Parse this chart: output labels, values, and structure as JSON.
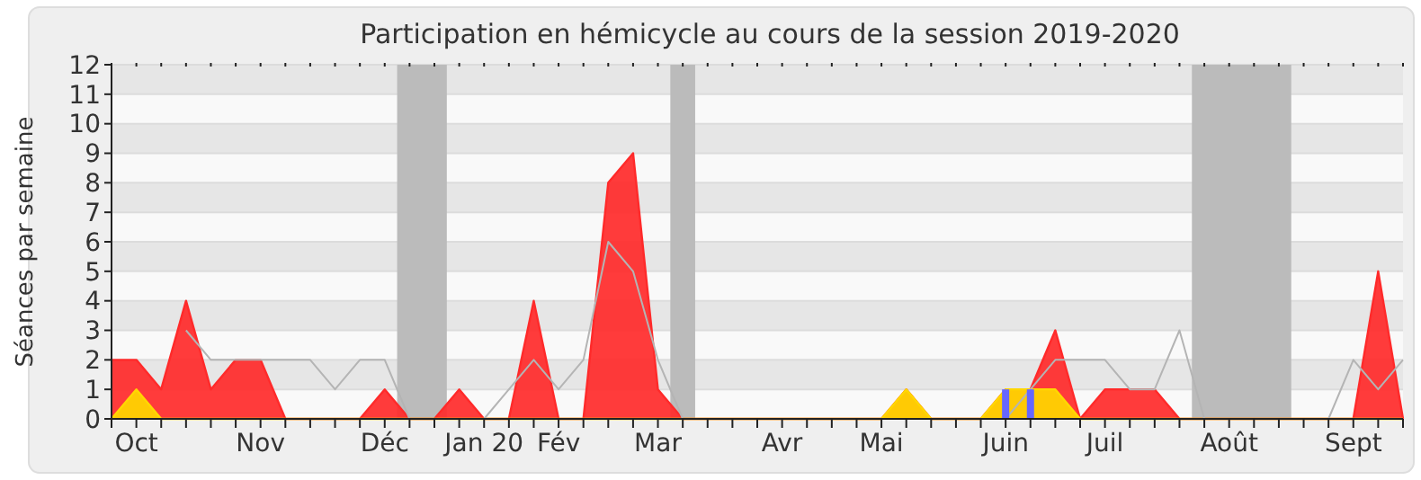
{
  "chart_data": {
    "type": "area",
    "title": "Participation en hémicycle au cours de la session 2019-2020",
    "ylabel": "Séances par semaine",
    "categories": [
      null,
      "Oct",
      null,
      null,
      null,
      null,
      "Nov",
      null,
      null,
      null,
      null,
      "Déc",
      null,
      null,
      null,
      "Jan 20",
      null,
      null,
      "Fév",
      null,
      null,
      null,
      "Mar",
      null,
      null,
      null,
      null,
      "Avr",
      null,
      null,
      null,
      "Mai",
      null,
      null,
      null,
      null,
      "Juin",
      null,
      null,
      null,
      "Juil",
      null,
      null,
      null,
      null,
      "Août",
      null,
      null,
      null,
      null,
      "Sept",
      null,
      null
    ],
    "ylim": [
      0,
      12
    ],
    "yticks": [
      0,
      1,
      2,
      3,
      4,
      5,
      6,
      7,
      8,
      9,
      10,
      11,
      12
    ],
    "grid": "y",
    "series": [
      {
        "color": "#ff2a2a",
        "values": [
          2,
          2,
          1,
          4,
          1,
          2,
          2,
          0,
          0,
          0,
          0,
          1,
          0,
          0,
          1,
          0,
          0,
          4,
          0,
          0,
          8,
          9,
          1,
          0,
          0,
          0,
          0,
          0,
          0,
          0,
          0,
          0,
          1,
          0,
          0,
          0,
          1,
          1,
          3,
          0,
          1,
          1,
          1,
          0,
          0,
          0,
          0,
          0,
          0,
          0,
          0,
          5,
          0
        ]
      },
      {
        "color": "#ffd700",
        "values": [
          0,
          1,
          0,
          0,
          0,
          0,
          0,
          0,
          0,
          0,
          0,
          0,
          0,
          0,
          0,
          0,
          0,
          0,
          0,
          0,
          0,
          0,
          0,
          0,
          0,
          0,
          0,
          0,
          0,
          0,
          0,
          0,
          1,
          0,
          0,
          0,
          1,
          1,
          1,
          0,
          0,
          0,
          0,
          0,
          0,
          0,
          0,
          0,
          0,
          0,
          0,
          0,
          0
        ]
      },
      {
        "type": "line",
        "color": "#b4b4b4",
        "values": [
          null,
          null,
          null,
          3,
          2,
          2,
          2,
          2,
          2,
          1,
          2,
          2,
          0,
          0,
          0,
          0,
          1,
          2,
          1,
          2,
          6,
          5,
          2,
          0,
          0,
          0,
          0,
          0,
          0,
          0,
          0,
          0,
          0,
          0,
          0,
          0,
          0,
          1,
          2,
          2,
          2,
          1,
          1,
          3,
          0,
          0,
          0,
          0,
          0,
          0,
          2,
          1,
          2
        ]
      },
      {
        "type": "bar",
        "color": "#6666ff",
        "values": [
          null,
          null,
          null,
          null,
          null,
          null,
          null,
          null,
          null,
          null,
          null,
          null,
          null,
          null,
          null,
          null,
          null,
          null,
          null,
          null,
          null,
          null,
          null,
          null,
          null,
          null,
          null,
          null,
          null,
          null,
          null,
          null,
          null,
          null,
          null,
          null,
          1,
          1,
          null,
          null,
          null,
          null,
          null,
          null,
          null,
          null,
          null,
          null,
          null,
          null,
          null,
          null,
          null
        ]
      }
    ]
  }
}
